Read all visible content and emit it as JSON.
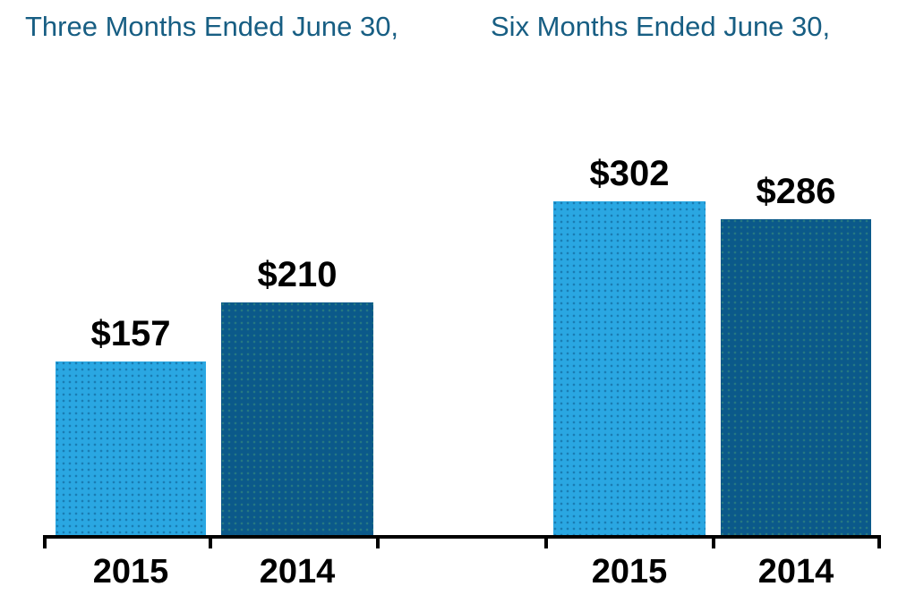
{
  "chart_data": {
    "type": "bar",
    "groups": [
      {
        "title": "Three Months Ended June 30,",
        "categories": [
          "2015",
          "2014"
        ],
        "values": [
          157,
          210
        ],
        "labels": [
          "$157",
          "$210"
        ]
      },
      {
        "title": "Six Months Ended June 30,",
        "categories": [
          "2015",
          "2014"
        ],
        "values": [
          302,
          286
        ],
        "labels": [
          "$302",
          "$286"
        ]
      }
    ],
    "series": [
      {
        "name": "2015",
        "color": "#2AA7E2"
      },
      {
        "name": "2014",
        "color": "#0B598A"
      }
    ],
    "value_prefix": "$",
    "legend": "none",
    "gridlines": false,
    "y_axis": "hidden",
    "x_axis": "black baseline with tick marks",
    "colors": {
      "group_title_text": "#175E83",
      "value_label_text": "#000000",
      "category_label_text": "#000000",
      "axis": "#000000",
      "background": "#FFFFFF"
    }
  }
}
